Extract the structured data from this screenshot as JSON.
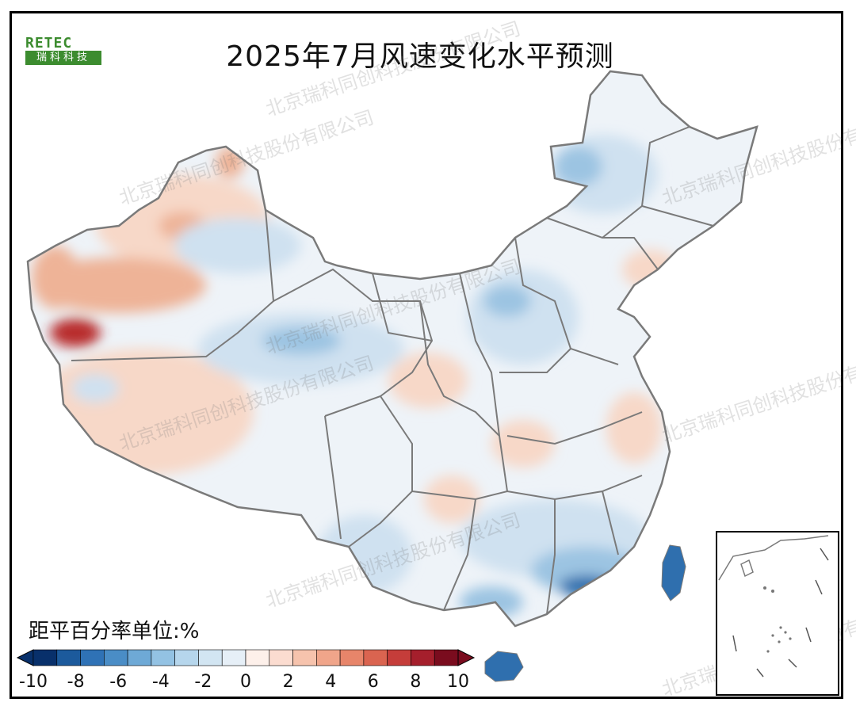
{
  "title": "2025年7月风速变化水平预测",
  "logo": {
    "top_text": "RETEC",
    "bottom_text": "瑞科科技"
  },
  "watermark_text": "北京瑞科同创科技股份有限公司",
  "legend": {
    "title": "距平百分率单位:%",
    "ticks": [
      "-10",
      "-8",
      "-6",
      "-4",
      "-2",
      "0",
      "2",
      "4",
      "6",
      "8",
      "10"
    ],
    "colors": [
      "#08306b",
      "#1c5a9c",
      "#2f72b6",
      "#4a8dc6",
      "#6ea9d6",
      "#93c2e3",
      "#b6d6ec",
      "#d2e5f2",
      "#e6eff7",
      "#fdf0ea",
      "#fbdcd0",
      "#f6c3ad",
      "#f0a58a",
      "#e7856a",
      "#da6450",
      "#c53d3a",
      "#a51f2c",
      "#7a0c1e"
    ]
  },
  "map_colors": {
    "neutral": "#eef3f8",
    "light_blue": "#cfe1f0",
    "mid_blue": "#9cc4e2",
    "dark_blue": "#2f6fae",
    "light_red": "#f7d8c8",
    "mid_red": "#eeb397",
    "dark_red": "#b8292c",
    "border": "#7a7a7a"
  }
}
